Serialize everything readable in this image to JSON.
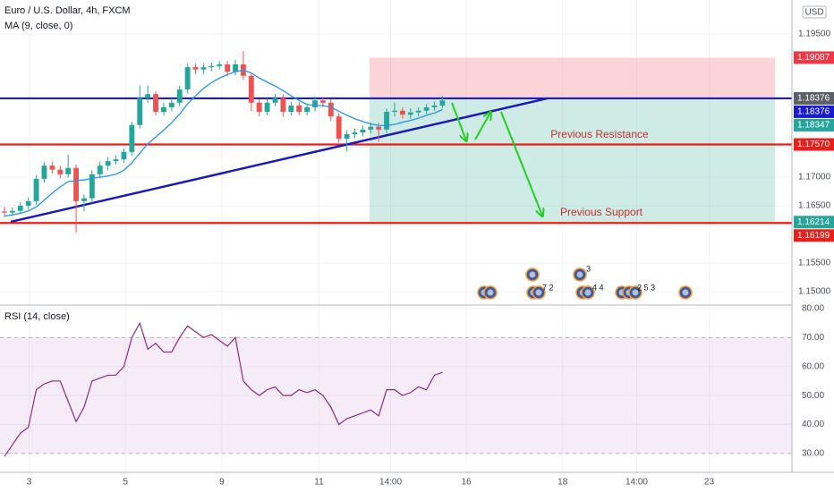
{
  "chart_data": {
    "type": "candlestick",
    "title": "Euro / U.S. Dollar, 4h, FXCM",
    "indicator": "MA (9, close, 0)",
    "currency": "USD",
    "xlim": [
      -0.56,
      98.9
    ],
    "xticks": [
      {
        "value": 3.1,
        "label": "3"
      },
      {
        "value": 15.2,
        "label": "5"
      },
      {
        "value": 27.3,
        "label": "9"
      },
      {
        "value": 39.5,
        "label": "11"
      },
      {
        "value": 48.5,
        "label": "14:00"
      },
      {
        "value": 58,
        "label": "16"
      },
      {
        "value": 70.1,
        "label": "18"
      },
      {
        "value": 79.4,
        "label": "14:00"
      },
      {
        "value": 88.5,
        "label": "23"
      }
    ],
    "ylim": [
      1.14781,
      1.20094
    ],
    "yticks": [
      {
        "value": 1.195,
        "label": "1.19500"
      },
      {
        "value": 1.17,
        "label": "1.17000"
      },
      {
        "value": 1.165,
        "label": "1.16500"
      },
      {
        "value": 1.155,
        "label": "1.15500"
      },
      {
        "value": 1.15,
        "label": "1.15000"
      }
    ],
    "up_color": "#26a69a",
    "down_color": "#ef5350",
    "candles": {
      "open": [
        1.164,
        1.1638,
        1.1641,
        1.165,
        1.1658,
        1.1697,
        1.172,
        1.1713,
        1.1705,
        1.1716,
        1.1658,
        1.1663,
        1.1705,
        1.172,
        1.1728,
        1.1731,
        1.1744,
        1.1791,
        1.1838,
        1.1845,
        1.1814,
        1.1822,
        1.183,
        1.1853,
        1.1892,
        1.1888,
        1.1892,
        1.1894,
        1.1897,
        1.1884,
        1.1897,
        1.1877,
        1.183,
        1.1814,
        1.183,
        1.1838,
        1.1814,
        1.1825,
        1.1814,
        1.1822,
        1.1834,
        1.183,
        1.1806,
        1.1767,
        1.1775,
        1.1778,
        1.1783,
        1.1788,
        1.1783,
        1.1814,
        1.1816,
        1.1809,
        1.1813,
        1.1816,
        1.1822,
        1.1825
      ],
      "high": [
        1.1648,
        1.1647,
        1.1656,
        1.1664,
        1.1703,
        1.1726,
        1.1727,
        1.172,
        1.174,
        1.1722,
        1.167,
        1.1712,
        1.1727,
        1.1735,
        1.1738,
        1.175,
        1.1797,
        1.186,
        1.186,
        1.185,
        1.183,
        1.1838,
        1.186,
        1.1898,
        1.1898,
        1.1898,
        1.19,
        1.1903,
        1.1903,
        1.1905,
        1.192,
        1.1883,
        1.1836,
        1.1837,
        1.1845,
        1.1844,
        1.1832,
        1.1831,
        1.1829,
        1.184,
        1.184,
        1.1836,
        1.1812,
        1.1782,
        1.1785,
        1.179,
        1.1795,
        1.1795,
        1.182,
        1.183,
        1.1822,
        1.182,
        1.1822,
        1.1828,
        1.1832,
        1.1842
      ],
      "low": [
        1.163,
        1.1632,
        1.1636,
        1.1644,
        1.1652,
        1.169,
        1.1706,
        1.1698,
        1.1699,
        1.1603,
        1.164,
        1.1655,
        1.1698,
        1.1712,
        1.1722,
        1.1725,
        1.1738,
        1.1785,
        1.183,
        1.1808,
        1.1808,
        1.1815,
        1.1824,
        1.1846,
        1.188,
        1.188,
        1.1885,
        1.1888,
        1.1876,
        1.1878,
        1.187,
        1.1815,
        1.1806,
        1.1808,
        1.1824,
        1.1806,
        1.1808,
        1.1808,
        1.1808,
        1.1815,
        1.1822,
        1.1798,
        1.176,
        1.1745,
        1.1768,
        1.1771,
        1.1776,
        1.1762,
        1.1776,
        1.1806,
        1.1802,
        1.1802,
        1.1806,
        1.181,
        1.1816,
        1.182
      ],
      "close": [
        1.1638,
        1.1641,
        1.165,
        1.1658,
        1.1697,
        1.172,
        1.1713,
        1.1705,
        1.1716,
        1.1658,
        1.1663,
        1.1705,
        1.172,
        1.1728,
        1.1731,
        1.1744,
        1.1791,
        1.1838,
        1.1845,
        1.1814,
        1.1822,
        1.183,
        1.1853,
        1.1892,
        1.1888,
        1.1892,
        1.1894,
        1.1897,
        1.1884,
        1.1897,
        1.1877,
        1.183,
        1.1814,
        1.183,
        1.1838,
        1.1814,
        1.1825,
        1.1814,
        1.1822,
        1.1834,
        1.183,
        1.1806,
        1.1767,
        1.1775,
        1.1778,
        1.1783,
        1.1788,
        1.1783,
        1.1814,
        1.1816,
        1.1809,
        1.1813,
        1.1816,
        1.1822,
        1.1825,
        1.1834
      ]
    },
    "ma": {
      "color": "#2196f3",
      "values": [
        1.1632,
        1.1634,
        1.1637,
        1.1641,
        1.1648,
        1.166,
        1.1672,
        1.1683,
        1.1692,
        1.1694,
        1.1695,
        1.1698,
        1.17,
        1.1702,
        1.1705,
        1.1712,
        1.1725,
        1.1742,
        1.1758,
        1.177,
        1.1782,
        1.1795,
        1.181,
        1.1828,
        1.1842,
        1.1855,
        1.1865,
        1.1873,
        1.1879,
        1.1884,
        1.1887,
        1.1882,
        1.1873,
        1.1866,
        1.1859,
        1.1851,
        1.1842,
        1.1834,
        1.1827,
        1.1825,
        1.1825,
        1.1822,
        1.1815,
        1.1808,
        1.1802,
        1.1797,
        1.1793,
        1.179,
        1.179,
        1.1792,
        1.1796,
        1.1799,
        1.1803,
        1.1808,
        1.1812,
        1.1818
      ]
    },
    "levels": [
      {
        "value": 1.18376,
        "color": "#1c1ccf"
      },
      {
        "value": 1.1757,
        "color": "#e8201c"
      },
      {
        "value": 1.16199,
        "color": "#e8201c"
      }
    ],
    "trendline": {
      "x": [
        0.8,
        68.2
      ],
      "y": [
        1.1622,
        1.18376
      ],
      "color": "#1a1ab8"
    },
    "position": {
      "x": [
        45.85,
        96.76
      ],
      "stop": 1.19087,
      "entry": 1.18376,
      "target": 1.16214
    },
    "annotations": [
      "Previous Resistance",
      "Previous Support"
    ],
    "price_tags": [
      {
        "value": 1.19087,
        "label": "1.19087",
        "color": "#f23645"
      },
      {
        "value": 1.18376,
        "label": "1.18376",
        "color": "#5d606b"
      },
      {
        "value": 1.18376,
        "label": "1.18376",
        "color": "#1c1ccf"
      },
      {
        "value": 1.18347,
        "label": "1.18347",
        "color": "#26a69a"
      },
      {
        "value": 1.1757,
        "label": "1.17570",
        "color": "#e8201c"
      },
      {
        "value": 1.16214,
        "label": "1.16214",
        "color": "#26a69a"
      },
      {
        "value": 1.16199,
        "label": "1.16199",
        "color": "#e8201c"
      }
    ],
    "events": [
      "7 2",
      "4 4",
      "3",
      "2 5 3"
    ],
    "rsi": {
      "title": "RSI (14, close)",
      "color": "#8e2a7e",
      "ylim": [
        23.5,
        80.6
      ],
      "band": [
        30,
        70
      ],
      "yticks": [
        {
          "value": 80,
          "label": "80.00"
        },
        {
          "value": 70,
          "label": "70.00"
        },
        {
          "value": 60,
          "label": "60.00"
        },
        {
          "value": 50,
          "label": "50.00"
        },
        {
          "value": 40,
          "label": "40.00"
        },
        {
          "value": 30,
          "label": "30.00"
        }
      ],
      "values": [
        29,
        33,
        37,
        39,
        52,
        54,
        55,
        55,
        48,
        41,
        46,
        55,
        56,
        57,
        57,
        60,
        70,
        75,
        66,
        68,
        65,
        65,
        70,
        74,
        72,
        70,
        71,
        69,
        67,
        70,
        55,
        52,
        50,
        52,
        53,
        50,
        50,
        52,
        51,
        52,
        50,
        46,
        40,
        42,
        43,
        44,
        45,
        43,
        52,
        52,
        50,
        51,
        53,
        52,
        57,
        58
      ]
    }
  }
}
